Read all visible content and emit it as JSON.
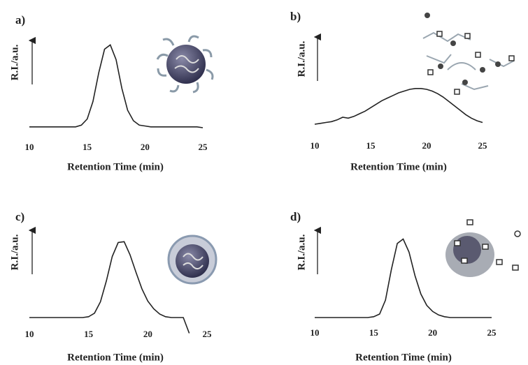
{
  "chart_data": [
    {
      "type": "line",
      "panel": "a)",
      "y_label": "R.I./a.u.",
      "x_label": "Retention Time (min)",
      "x": [
        10,
        10.5,
        11,
        11.5,
        12,
        12.5,
        13,
        13.5,
        14,
        14.5,
        15,
        15.5,
        16,
        16.5,
        17,
        17.5,
        18,
        18.5,
        19,
        19.5,
        20,
        20.5,
        21,
        21.5,
        22,
        22.5,
        23,
        23.5,
        24,
        24.5,
        25
      ],
      "values": [
        1,
        1,
        1,
        1,
        1,
        1,
        1,
        1,
        1,
        3,
        10,
        30,
        63,
        90,
        95,
        78,
        45,
        20,
        8,
        3,
        2,
        1,
        1,
        1,
        1,
        1,
        1,
        1,
        1,
        1,
        0
      ],
      "color": "#222222",
      "xlim": [
        10,
        25
      ],
      "xticks": [
        10,
        15,
        20,
        25
      ],
      "ylim": [
        0,
        100
      ]
    },
    {
      "type": "line",
      "panel": "b)",
      "y_label": "R.I./a.u.",
      "x_label": "Retention Time (min)",
      "x": [
        10,
        10.5,
        11,
        11.5,
        12,
        12.5,
        13,
        13.5,
        14,
        14.5,
        15,
        15.5,
        16,
        16.5,
        17,
        17.5,
        18,
        18.5,
        19,
        19.5,
        20,
        20.5,
        21,
        21.5,
        22,
        22.5,
        23,
        23.5,
        24,
        24.5,
        25
      ],
      "values": [
        0,
        1,
        2,
        3,
        5,
        8,
        7,
        9,
        12,
        15,
        19,
        23,
        27,
        30,
        33,
        36,
        38,
        40,
        41,
        41,
        40,
        38,
        35,
        31,
        26,
        21,
        16,
        11,
        7,
        4,
        2
      ],
      "color": "#222222",
      "xlim": [
        10,
        25
      ],
      "xticks": [
        10,
        15,
        20,
        25
      ],
      "ylim": [
        0,
        100
      ]
    },
    {
      "type": "line",
      "panel": "c)",
      "y_label": "R.I./a.u.",
      "x_label": "Retention Time (min)",
      "x": [
        10,
        10.5,
        11,
        11.5,
        12,
        12.5,
        13,
        13.5,
        14,
        14.5,
        15,
        15.5,
        16,
        16.5,
        17,
        17.5,
        18,
        18.5,
        19,
        19.5,
        20,
        20.5,
        21,
        21.5,
        22,
        22.5,
        23,
        23.5,
        24,
        24.5,
        25
      ],
      "values": [
        0,
        0,
        0,
        0,
        0,
        0,
        0,
        0,
        0,
        0,
        1,
        5,
        18,
        42,
        70,
        86,
        87,
        72,
        52,
        33,
        19,
        10,
        4,
        1,
        0,
        0,
        0,
        -18,
        null,
        null,
        null
      ],
      "color": "#222222",
      "xlim": [
        10,
        25
      ],
      "xticks": [
        10,
        15,
        20,
        25
      ],
      "ylim": [
        -20,
        100
      ]
    },
    {
      "type": "line",
      "panel": "d)",
      "y_label": "R.I./a.u.",
      "x_label": "Retention Time (min)",
      "x": [
        10,
        10.5,
        11,
        11.5,
        12,
        12.5,
        13,
        13.5,
        14,
        14.5,
        15,
        15.5,
        16,
        16.5,
        17,
        17.5,
        18,
        18.5,
        19,
        19.5,
        20,
        20.5,
        21,
        21.5,
        22,
        22.5,
        23,
        23.5,
        24,
        24.5,
        25
      ],
      "values": [
        0,
        0,
        0,
        0,
        0,
        0,
        0,
        0,
        0,
        0,
        1,
        4,
        20,
        55,
        85,
        90,
        75,
        48,
        27,
        14,
        7,
        3,
        1,
        0,
        0,
        0,
        0,
        0,
        0,
        0,
        0
      ],
      "color": "#222222",
      "xlim": [
        10,
        25
      ],
      "xticks": [
        10,
        15,
        20,
        25
      ],
      "ylim": [
        0,
        100
      ]
    }
  ]
}
